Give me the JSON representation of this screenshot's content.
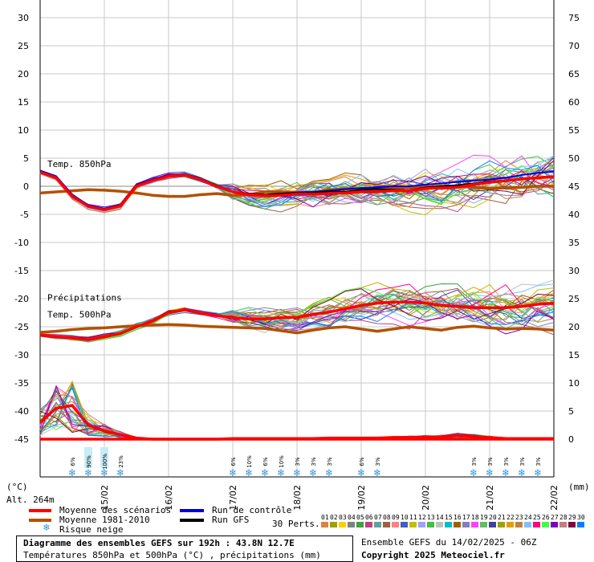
{
  "chart_data": {
    "type": "line",
    "title": "Diagramme des ensembles GEFS sur 192h : 43.8N 12.7E",
    "subtitle": "Températures 850hPa et 500hPa (°C) , précipitations (mm)",
    "left_axis": {
      "unit": "(°C)",
      "ticks": [
        30,
        25,
        20,
        15,
        10,
        5,
        0,
        -5,
        -10,
        -15,
        -20,
        -25,
        -30,
        -35,
        -40,
        -45
      ],
      "ylim": [
        -45,
        30
      ]
    },
    "right_axis": {
      "unit": "(mm)",
      "ticks": [
        75,
        70,
        65,
        60,
        55,
        50,
        45,
        40,
        35,
        30,
        25,
        20,
        15,
        10,
        5,
        0
      ],
      "ylim": [
        0,
        75
      ]
    },
    "x_ticks": [
      "15/02",
      "16/02",
      "17/02",
      "18/02",
      "19/02",
      "20/02",
      "21/02",
      "22/02"
    ],
    "xlim_hours": [
      0,
      192
    ],
    "x_step_hours": 6,
    "panel_labels": {
      "t850": "Temp. 850hPa",
      "t500": "Temp. 500hPa",
      "precip": "Précipitations"
    },
    "altitude": "Alt. 264m",
    "series": [
      {
        "name": "Moyenne des scénarios",
        "panel": "t850",
        "color": "#ff0000",
        "values": [
          2.5,
          1.5,
          -1.8,
          -3.6,
          -4.2,
          -3.5,
          0.0,
          1.0,
          1.8,
          2.0,
          1.2,
          0.0,
          -1.0,
          -1.5,
          -1.7,
          -1.6,
          -1.4,
          -1.4,
          -1.3,
          -1.2,
          -1.0,
          -1.0,
          -0.8,
          -0.8,
          -0.4,
          -0.3,
          -0.2,
          0.3,
          0.7,
          1.0,
          1.3,
          1.5,
          1.7
        ]
      },
      {
        "name": "Moyenne 1981-2010",
        "panel": "t850",
        "color": "#b45000",
        "values": [
          -1.2,
          -1.0,
          -0.8,
          -0.6,
          -0.7,
          -0.9,
          -1.2,
          -1.6,
          -1.8,
          -1.8,
          -1.5,
          -1.3,
          -1.6,
          -1.5,
          -1.0,
          -1.0,
          -1.1,
          -1.1,
          -0.6,
          -0.5,
          -0.5,
          -0.6,
          -0.3,
          -0.2,
          -0.1,
          0.0,
          0.0,
          -0.2,
          -0.4,
          -0.3,
          -0.2,
          0.0,
          0.0
        ]
      },
      {
        "name": "Run de contrôle",
        "panel": "t850",
        "color": "#0000dd",
        "values": [
          2.8,
          1.8,
          -1.5,
          -3.4,
          -4.0,
          -3.3,
          0.2,
          1.2,
          2.0,
          2.2,
          1.4,
          0.2,
          -1.0,
          -1.4,
          -1.5,
          -1.3,
          -1.1,
          -1.0,
          -0.8,
          -0.5,
          -0.3,
          -0.2,
          0.0,
          0.0,
          0.3,
          0.5,
          0.8,
          1.0,
          1.2,
          1.5,
          2.0,
          2.4,
          2.6
        ]
      },
      {
        "name": "Run GFS",
        "panel": "t850",
        "color": "#000000",
        "values": [
          2.6,
          1.6,
          -1.7,
          -3.5,
          -4.1,
          -3.4,
          0.1,
          1.1,
          1.9,
          2.1,
          1.3,
          0.1,
          -1.0,
          -1.3,
          -1.5,
          -1.3,
          -1.2,
          -1.2,
          -0.9,
          -1.0,
          -0.6,
          -0.5,
          -0.6,
          -0.7,
          -0.2,
          0.0,
          0.2,
          0.5,
          0.9,
          1.0,
          1.3,
          1.6,
          1.8
        ]
      },
      {
        "name": "Moyenne des scénarios",
        "panel": "t500",
        "color": "#ff0000",
        "values": [
          -26.5,
          -26.8,
          -27.0,
          -27.3,
          -26.8,
          -26.2,
          -25.0,
          -24.0,
          -22.5,
          -22.0,
          -22.6,
          -23.0,
          -23.4,
          -23.6,
          -23.6,
          -23.4,
          -23.3,
          -22.8,
          -22.4,
          -21.8,
          -21.2,
          -20.8,
          -20.6,
          -20.6,
          -20.8,
          -21.2,
          -21.4,
          -21.6,
          -21.6,
          -21.6,
          -21.4,
          -21.0,
          -20.8
        ]
      },
      {
        "name": "Moyenne 1981-2010",
        "panel": "t500",
        "color": "#b45000",
        "values": [
          -26.0,
          -25.8,
          -25.5,
          -25.3,
          -25.2,
          -25.0,
          -24.8,
          -24.7,
          -24.6,
          -24.7,
          -24.9,
          -25.0,
          -25.1,
          -25.2,
          -25.3,
          -25.7,
          -26.1,
          -25.6,
          -25.2,
          -25.0,
          -25.4,
          -25.8,
          -25.4,
          -25.0,
          -25.3,
          -25.6,
          -25.1,
          -24.9,
          -25.2,
          -25.4,
          -25.3,
          -25.4,
          -25.6
        ]
      },
      {
        "name": "Moyenne des scénarios",
        "panel": "precip",
        "color": "#ff0000",
        "values": [
          0,
          0,
          0,
          0,
          0,
          0,
          0,
          0,
          0,
          0,
          0,
          0,
          0,
          0,
          0,
          0,
          0,
          0,
          0,
          0,
          0,
          0,
          0,
          0,
          0,
          0,
          0,
          0,
          0,
          0,
          0,
          0,
          0
        ]
      }
    ],
    "precip_mean_mm": [
      3.0,
      5.5,
      6.0,
      2.5,
      1.5,
      0.8,
      0.2,
      0,
      0,
      0,
      0,
      0,
      0.1,
      0.1,
      0.1,
      0.1,
      0.1,
      0.1,
      0.2,
      0.2,
      0.2,
      0.2,
      0.3,
      0.3,
      0.4,
      0.4,
      0.6,
      0.5,
      0.3,
      0.1,
      0.1,
      0.1,
      0.1
    ],
    "snow_risk": [
      {
        "hour": 12,
        "label": "6%"
      },
      {
        "hour": 18,
        "label": "90%"
      },
      {
        "hour": 24,
        "label": "100%"
      },
      {
        "hour": 30,
        "label": "23%"
      },
      {
        "hour": 72,
        "label": "6%"
      },
      {
        "hour": 78,
        "label": "10%"
      },
      {
        "hour": 84,
        "label": "6%"
      },
      {
        "hour": 90,
        "label": "10%"
      },
      {
        "hour": 96,
        "label": "3%"
      },
      {
        "hour": 102,
        "label": "3%"
      },
      {
        "hour": 108,
        "label": "3%"
      },
      {
        "hour": 120,
        "label": "6%"
      },
      {
        "hour": 126,
        "label": "3%"
      },
      {
        "hour": 162,
        "label": "3%"
      },
      {
        "hour": 168,
        "label": "3%"
      },
      {
        "hour": 174,
        "label": "3%"
      },
      {
        "hour": 180,
        "label": "3%"
      },
      {
        "hour": 186,
        "label": "3%"
      }
    ],
    "legend": [
      "Moyenne des scénarios",
      "Moyenne 1981-2010",
      "Risque neige",
      "Run de contrôle",
      "Run GFS"
    ],
    "perturbations_label": "30 Perts.",
    "perturbation_ids": [
      "01",
      "02",
      "03",
      "04",
      "05",
      "06",
      "07",
      "08",
      "09",
      "10",
      "11",
      "12",
      "13",
      "14",
      "15",
      "16",
      "17",
      "18",
      "19",
      "20",
      "21",
      "22",
      "23",
      "24",
      "25",
      "26",
      "27",
      "28",
      "29",
      "30"
    ],
    "perturbation_colors": [
      "#e08040",
      "#a0a000",
      "#ffd000",
      "#808080",
      "#40a040",
      "#c04080",
      "#60a0a0",
      "#a06040",
      "#ff8080",
      "#4060c0",
      "#c0c000",
      "#a0a0ff",
      "#40c040",
      "#c0c0c0",
      "#00c0c0",
      "#a06000",
      "#8080c0",
      "#ff40ff",
      "#60c060",
      "#4040a0",
      "#a0a000",
      "#e0a000",
      "#c08040",
      "#80c0ff",
      "#ff0080",
      "#40ff40",
      "#8000c0",
      "#c08080",
      "#800040",
      "#0080ff"
    ],
    "run_info": "Ensemble GEFS du 14/02/2025 - 06Z",
    "copyright": "Copyright 2025 Meteociel.fr",
    "grid": true
  }
}
